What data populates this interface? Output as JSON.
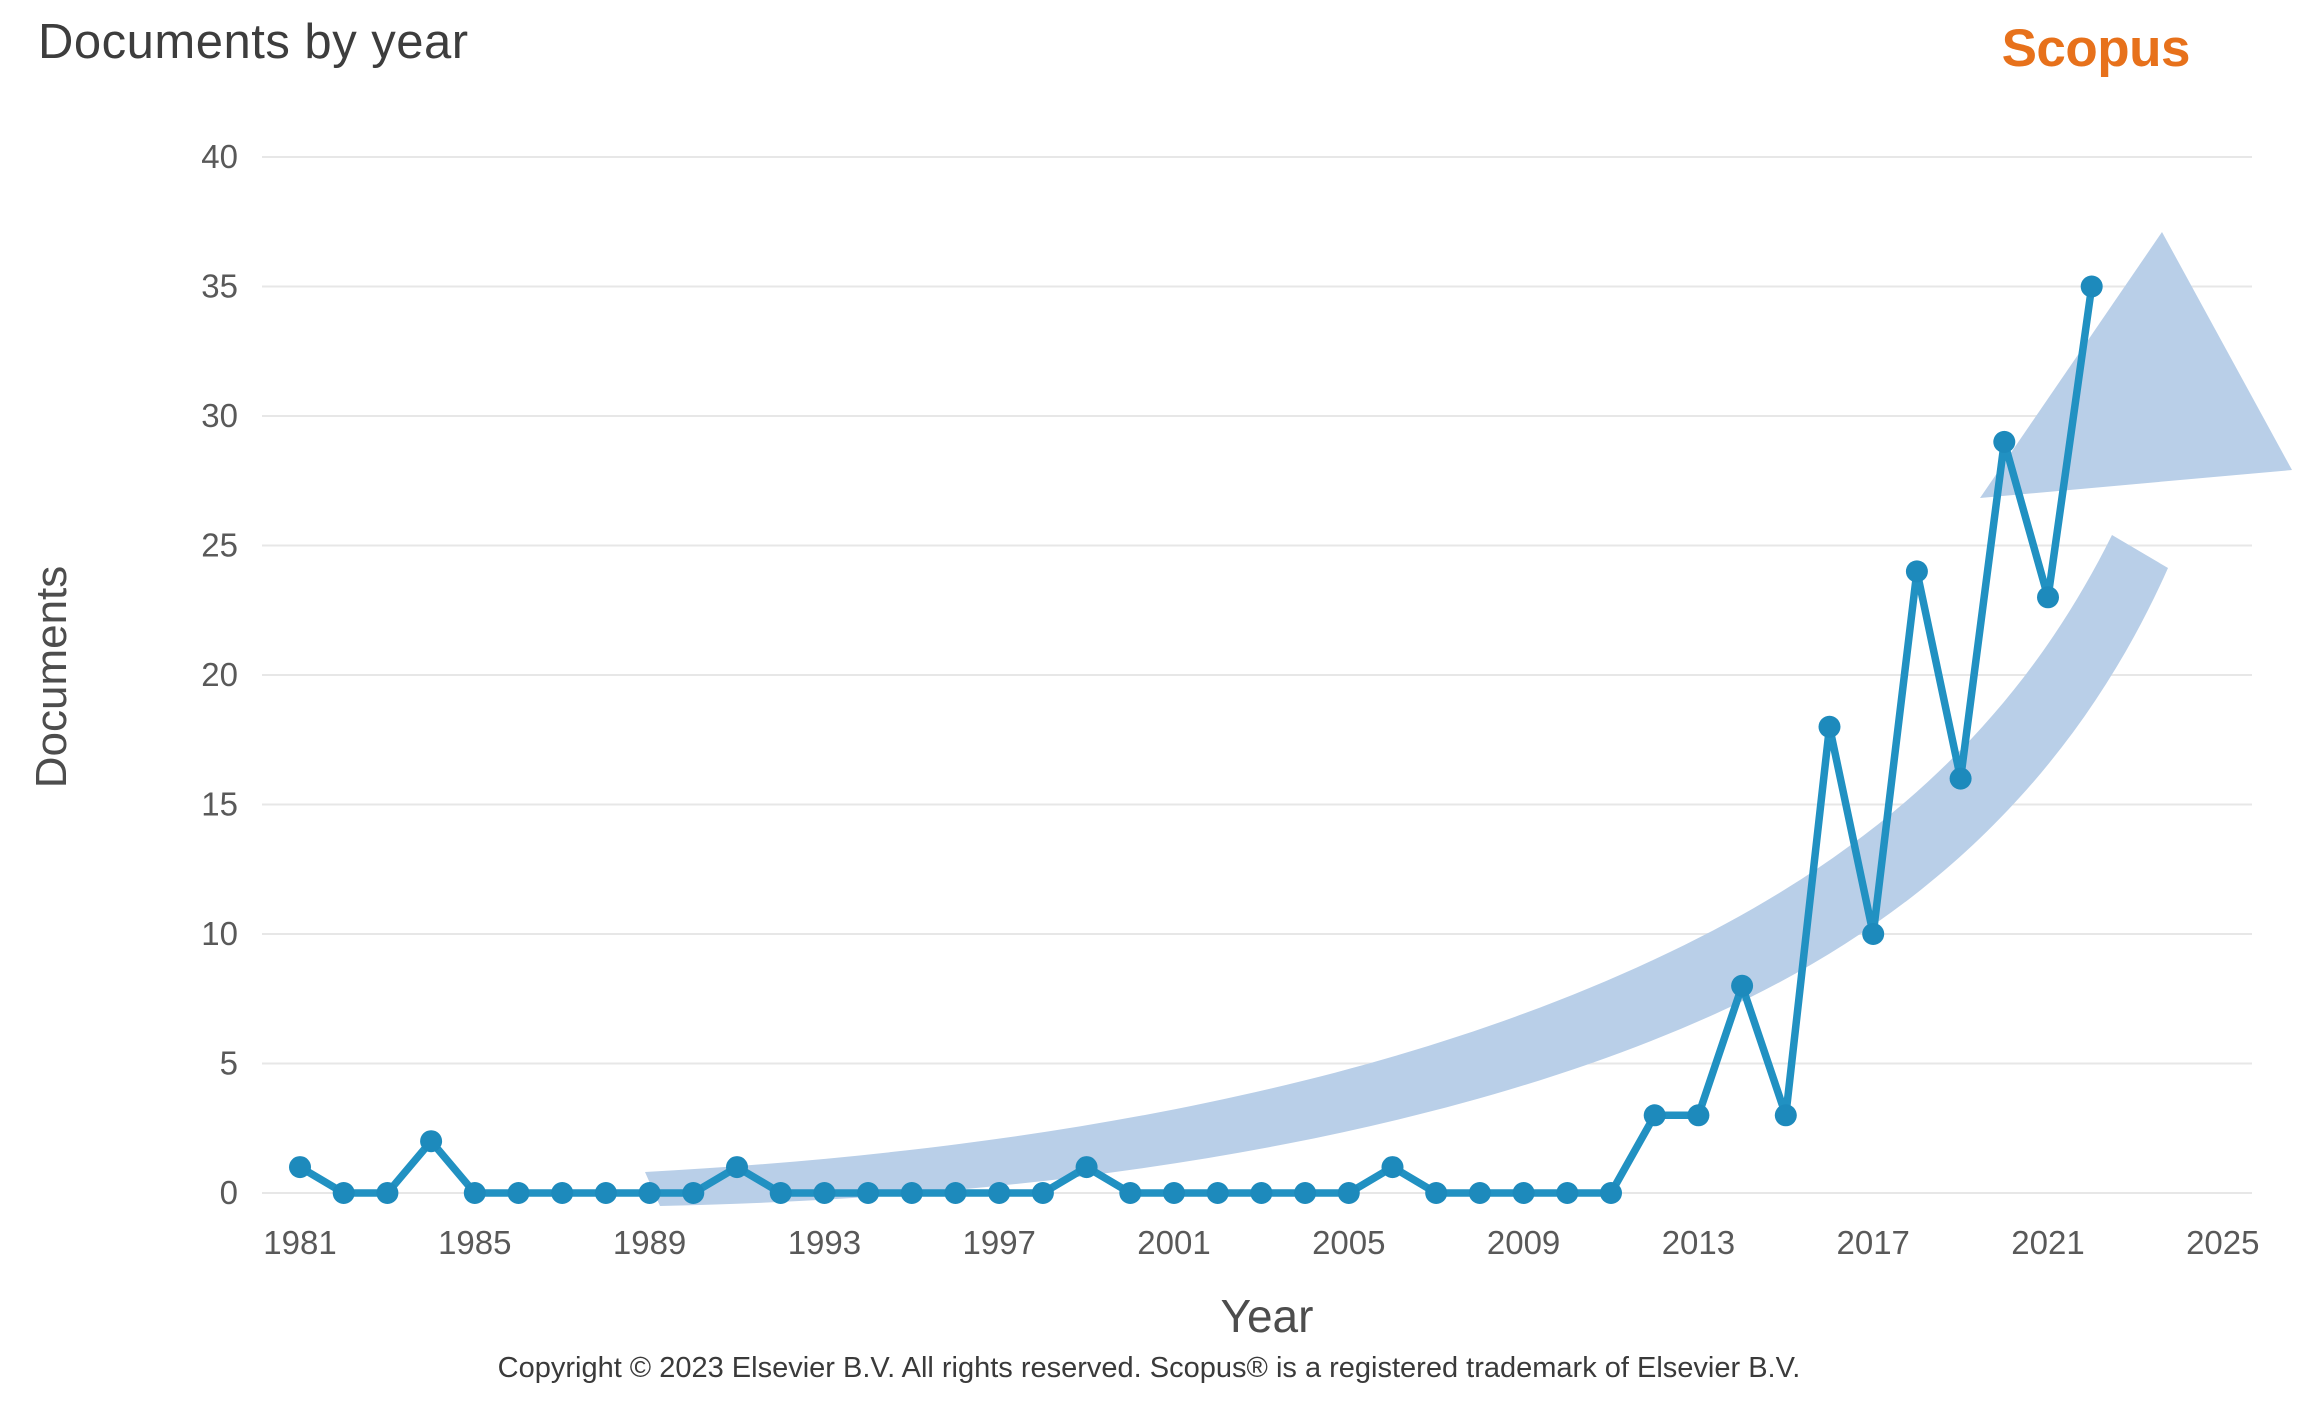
{
  "header": {
    "title": "Documents by year",
    "logo": "Scopus"
  },
  "chart_data": {
    "type": "line",
    "title": "Documents by year",
    "xlabel": "Year",
    "ylabel": "Documents",
    "x": [
      1981,
      1982,
      1983,
      1984,
      1985,
      1986,
      1987,
      1988,
      1989,
      1990,
      1991,
      1992,
      1993,
      1994,
      1995,
      1996,
      1997,
      1998,
      1999,
      2000,
      2001,
      2002,
      2003,
      2004,
      2005,
      2006,
      2007,
      2008,
      2009,
      2010,
      2011,
      2012,
      2013,
      2014,
      2015,
      2016,
      2017,
      2018,
      2019,
      2020,
      2021,
      2022
    ],
    "series": [
      {
        "name": "Documents",
        "values": [
          1,
          0,
          0,
          2,
          0,
          0,
          0,
          0,
          0,
          0,
          1,
          0,
          0,
          0,
          0,
          0,
          0,
          0,
          1,
          0,
          0,
          0,
          0,
          0,
          0,
          1,
          0,
          0,
          0,
          0,
          0,
          3,
          3,
          8,
          3,
          18,
          10,
          24,
          16,
          29,
          23,
          35
        ]
      }
    ],
    "xticks": [
      1981,
      1985,
      1989,
      1993,
      1997,
      2001,
      2005,
      2009,
      2013,
      2017,
      2021,
      2025
    ],
    "yticks": [
      0,
      5,
      10,
      15,
      20,
      25,
      30,
      35,
      40
    ],
    "xlim": [
      1980,
      2026
    ],
    "ylim": [
      0,
      40
    ],
    "grid": "horizontal",
    "legend": "none",
    "annotations": [
      "upward-trend-arrow"
    ]
  },
  "footer": {
    "copyright": "Copyright © 2023 Elsevier B.V. All rights reserved. Scopus® is a registered trademark of Elsevier B.V."
  },
  "colors": {
    "line": "#2191c2",
    "marker": "#1d8abc",
    "arrow": "#b9cfe8",
    "grid": "#e7e7e7",
    "tick_text": "#595959",
    "axis_title_text": "#4d4d4d",
    "title_text": "#3d3d3d",
    "logo_orange": "#e7711b",
    "footer_text": "#3a3a3a",
    "background": "#ffffff"
  }
}
